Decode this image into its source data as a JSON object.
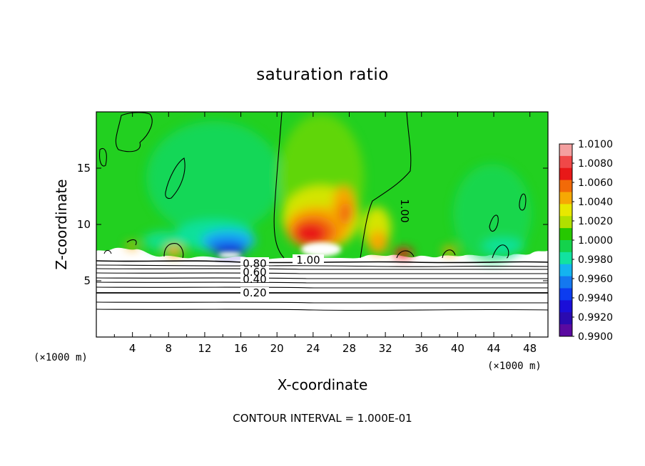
{
  "chart_data": {
    "type": "heatmap",
    "title": "saturation ratio",
    "xlabel": "X-coordinate",
    "ylabel": "Z-coordinate",
    "x_unit": "(×1000 m)",
    "y_unit": "(×1000 m)",
    "xlim": [
      0,
      50
    ],
    "ylim": [
      0,
      20
    ],
    "x_ticks": [
      4,
      8,
      12,
      16,
      20,
      24,
      28,
      32,
      36,
      40,
      44,
      48
    ],
    "y_ticks": [
      5,
      10,
      15
    ],
    "colorbar": {
      "min": 0.99,
      "max": 1.01,
      "labels": [
        "1.0100",
        "1.0080",
        "1.0060",
        "1.0040",
        "1.0020",
        "1.0000",
        "0.9980",
        "0.9960",
        "0.9940",
        "0.9920",
        "0.9900"
      ],
      "colors": [
        "#f4a0a0",
        "#f04848",
        "#e81818",
        "#f26a08",
        "#f6a804",
        "#e8e800",
        "#b0e000",
        "#26c800",
        "#14d24c",
        "#12e2a0",
        "#14b4f0",
        "#1478f0",
        "#0c3cf0",
        "#1a0ed8",
        "#2a0ab0",
        "#5a0aa0"
      ]
    },
    "contour_labels": [
      {
        "text": "0.80",
        "x": 13.1,
        "y": 6.4
      },
      {
        "text": "0.60",
        "x": 13.1,
        "y": 5.9
      },
      {
        "text": "0.40",
        "x": 13.1,
        "y": 5.1
      },
      {
        "text": "0.20",
        "x": 13.1,
        "y": 3.6
      },
      {
        "text": "1.00",
        "x": 23.4,
        "y": 6.8
      },
      {
        "text": "1.00",
        "x": 33.2,
        "y": 10.9
      }
    ],
    "footer": "CONTOUR INTERVAL = 1.000E-01"
  }
}
